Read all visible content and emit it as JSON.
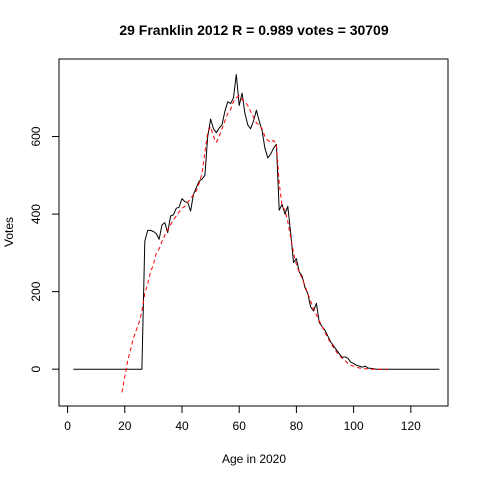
{
  "chart_data": {
    "type": "line",
    "title": "29 Franklin 2012 R = 0.989 votes = 30709",
    "xlabel": "Age in 2020",
    "ylabel": "Votes",
    "xlim": [
      -3,
      133
    ],
    "ylim": [
      -95,
      800
    ],
    "x_ticks": [
      0,
      20,
      40,
      60,
      80,
      100,
      120
    ],
    "y_ticks": [
      0,
      200,
      400,
      600
    ],
    "grid": false,
    "legend": "none",
    "series": [
      {
        "style": "solid",
        "color": "#000000",
        "x": [
          2,
          4,
          6,
          8,
          10,
          12,
          14,
          16,
          18,
          20,
          22,
          24,
          26,
          27,
          28,
          29,
          30,
          31,
          32,
          33,
          34,
          35,
          36,
          37,
          38,
          39,
          40,
          41,
          42,
          43,
          44,
          45,
          46,
          47,
          48,
          49,
          50,
          51,
          52,
          53,
          54,
          55,
          56,
          57,
          58,
          59,
          60,
          61,
          62,
          63,
          64,
          65,
          66,
          67,
          68,
          69,
          70,
          71,
          72,
          73,
          74,
          75,
          76,
          77,
          78,
          79,
          80,
          81,
          82,
          83,
          84,
          85,
          86,
          87,
          88,
          89,
          90,
          91,
          92,
          93,
          94,
          95,
          96,
          97,
          98,
          99,
          100,
          101,
          102,
          103,
          104,
          105,
          106,
          107,
          108,
          110,
          112,
          115,
          120,
          125,
          130
        ],
        "y": [
          0,
          0,
          0,
          0,
          0,
          0,
          0,
          0,
          0,
          0,
          0,
          0,
          0,
          330,
          358,
          358,
          355,
          350,
          335,
          372,
          378,
          352,
          395,
          398,
          415,
          418,
          440,
          432,
          430,
          408,
          450,
          468,
          485,
          490,
          500,
          600,
          645,
          620,
          610,
          622,
          630,
          665,
          690,
          685,
          700,
          760,
          680,
          712,
          660,
          630,
          620,
          640,
          668,
          640,
          615,
          570,
          545,
          555,
          570,
          580,
          410,
          425,
          400,
          420,
          350,
          275,
          285,
          250,
          240,
          210,
          195,
          160,
          150,
          170,
          120,
          110,
          100,
          85,
          70,
          60,
          50,
          40,
          30,
          32,
          28,
          18,
          15,
          10,
          8,
          5,
          8,
          3,
          2,
          1,
          0,
          0,
          0,
          0,
          0,
          0,
          0
        ]
      },
      {
        "style": "dashed",
        "color": "#ff0000",
        "x": [
          19,
          20,
          21,
          22,
          23,
          24,
          25,
          26,
          27,
          28,
          29,
          30,
          31,
          32,
          33,
          34,
          35,
          36,
          37,
          38,
          39,
          40,
          41,
          42,
          43,
          44,
          45,
          46,
          47,
          48,
          49,
          50,
          51,
          52,
          53,
          54,
          55,
          56,
          57,
          58,
          59,
          60,
          61,
          62,
          63,
          64,
          65,
          66,
          67,
          68,
          69,
          70,
          71,
          72,
          73,
          74,
          75,
          76,
          77,
          78,
          79,
          80,
          81,
          82,
          83,
          84,
          85,
          86,
          87,
          88,
          89,
          90,
          91,
          92,
          93,
          94,
          95,
          96,
          97,
          98,
          99,
          100,
          101,
          102,
          103,
          104,
          105,
          106,
          107,
          108,
          109,
          110,
          111,
          112
        ],
        "y": [
          -60,
          -20,
          20,
          50,
          80,
          100,
          120,
          150,
          195,
          220,
          250,
          270,
          300,
          310,
          330,
          345,
          360,
          372,
          385,
          395,
          405,
          415,
          420,
          430,
          440,
          450,
          460,
          480,
          505,
          560,
          610,
          625,
          600,
          585,
          600,
          620,
          640,
          660,
          670,
          690,
          700,
          705,
          695,
          690,
          680,
          665,
          650,
          635,
          630,
          620,
          600,
          590,
          585,
          590,
          580,
          480,
          420,
          410,
          380,
          340,
          300,
          270,
          250,
          235,
          215,
          195,
          175,
          155,
          140,
          125,
          110,
          95,
          80,
          68,
          55,
          45,
          35,
          28,
          22,
          15,
          10,
          8,
          5,
          3,
          2,
          1,
          1,
          0,
          0,
          0,
          0,
          0,
          0,
          0
        ]
      }
    ]
  }
}
